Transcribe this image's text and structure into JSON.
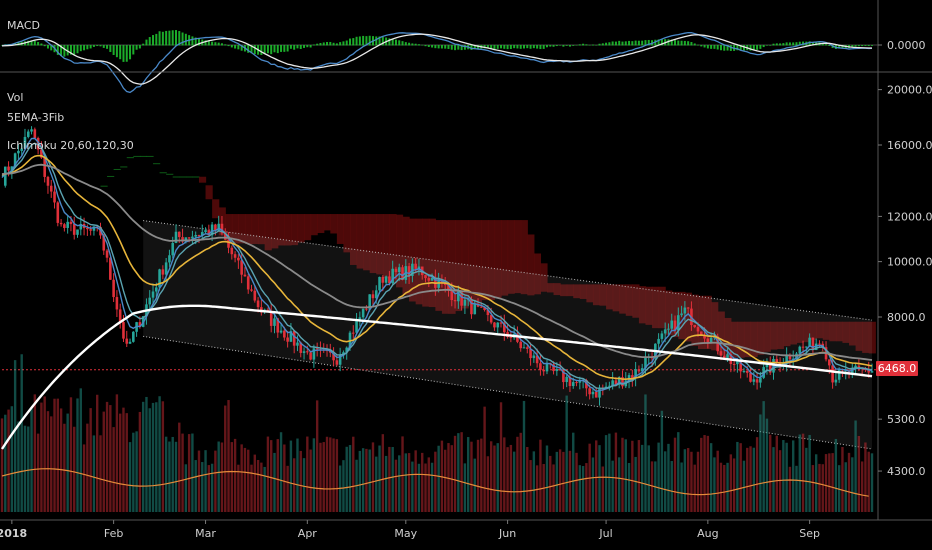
{
  "chart_data": {
    "type": "candlestick",
    "instrument_note": "",
    "indicators": {
      "macd_label": "MACD",
      "macd_value": "0.0000",
      "vol_label": "Vol",
      "ema_label": "5EMA-3Fib",
      "ichimoku_label": "Ichimoku 20,60,120,30"
    },
    "current_price": "6468.0",
    "y_ticks": [
      "20000.0",
      "16000.0",
      "12000.0",
      "10000.0",
      "8000.0",
      "5300.0",
      "4300.0"
    ],
    "x_ticks": [
      "2018",
      "Feb",
      "Mar",
      "Apr",
      "May",
      "Jun",
      "Jul",
      "Aug",
      "Sep"
    ],
    "price_axis": {
      "scale": "log",
      "range": [
        4000,
        21000
      ]
    },
    "approx_close_path": [
      {
        "date": "2017-12-29",
        "close": 14000
      },
      {
        "date": "2018-01-07",
        "close": 17000
      },
      {
        "date": "2018-01-16",
        "close": 11500
      },
      {
        "date": "2018-01-28",
        "close": 11200
      },
      {
        "date": "2018-02-05",
        "close": 7000
      },
      {
        "date": "2018-02-20",
        "close": 11000
      },
      {
        "date": "2018-03-05",
        "close": 11400
      },
      {
        "date": "2018-03-18",
        "close": 8200
      },
      {
        "date": "2018-04-01",
        "close": 6900
      },
      {
        "date": "2018-04-10",
        "close": 6800
      },
      {
        "date": "2018-04-24",
        "close": 9400
      },
      {
        "date": "2018-05-05",
        "close": 9700
      },
      {
        "date": "2018-05-20",
        "close": 8400
      },
      {
        "date": "2018-06-01",
        "close": 7500
      },
      {
        "date": "2018-06-12",
        "close": 6500
      },
      {
        "date": "2018-06-28",
        "close": 5900
      },
      {
        "date": "2018-07-10",
        "close": 6400
      },
      {
        "date": "2018-07-25",
        "close": 8200
      },
      {
        "date": "2018-08-05",
        "close": 7000
      },
      {
        "date": "2018-08-14",
        "close": 6200
      },
      {
        "date": "2018-08-28",
        "close": 7000
      },
      {
        "date": "2018-09-05",
        "close": 7300
      },
      {
        "date": "2018-09-08",
        "close": 6300
      },
      {
        "date": "2018-09-20",
        "close": 6468
      }
    ],
    "colors": {
      "up": "#26a69a",
      "down": "#e0303a",
      "ma_white": "#ffffff",
      "ma_gray": "#8a8a8a",
      "ma_yellow": "#e7b53a",
      "ma_blue": "#4a88c8",
      "ma_teal": "#5aa3b0",
      "cloud_green": "#0f6b1a",
      "cloud_red": "#5a0a0a",
      "macd_hist": "#1fbf2f",
      "volume_ma": "#e58b3a"
    }
  }
}
